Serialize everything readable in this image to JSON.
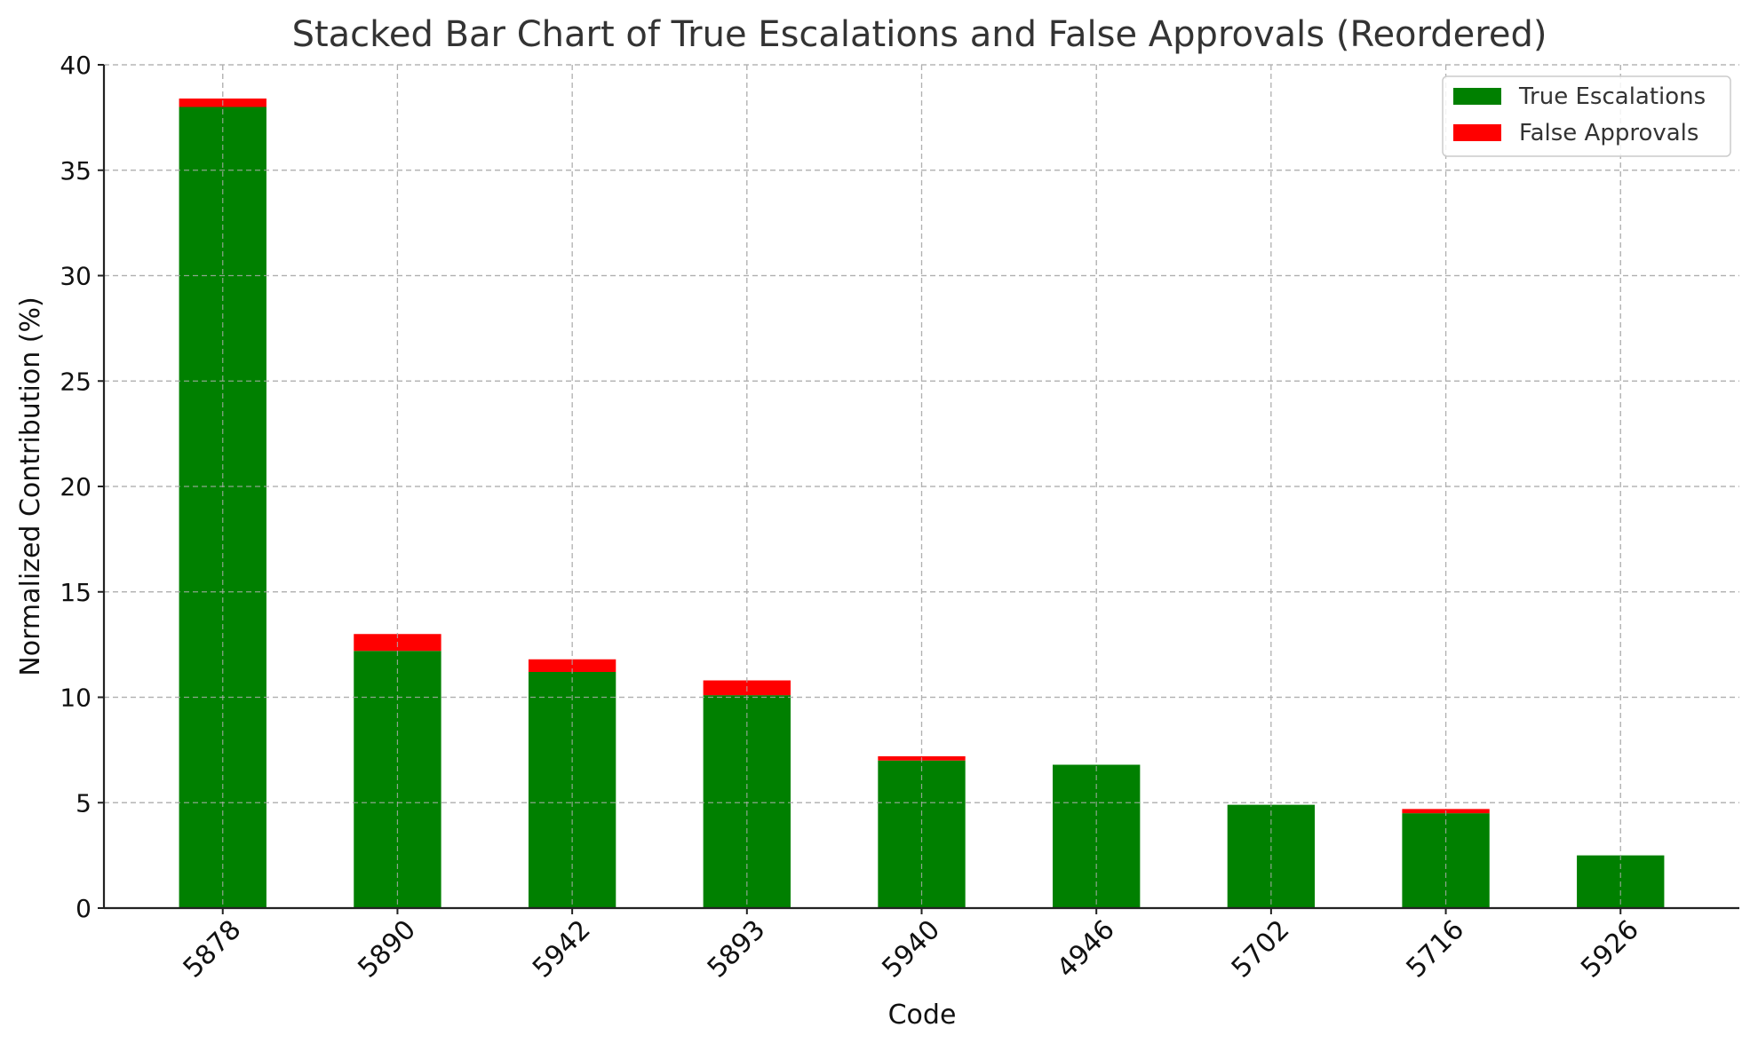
{
  "chart_data": {
    "type": "bar",
    "stacked": true,
    "title": "Stacked Bar Chart of True Escalations and False Approvals (Reordered)",
    "xlabel": "Code",
    "ylabel": "Normalized Contribution (%)",
    "categories": [
      "5878",
      "5890",
      "5942",
      "5893",
      "5940",
      "4946",
      "5702",
      "5716",
      "5926"
    ],
    "series": [
      {
        "name": "True Escalations",
        "color": "#008000",
        "values": [
          38.0,
          12.2,
          11.2,
          10.1,
          7.0,
          6.8,
          4.9,
          4.5,
          2.5
        ]
      },
      {
        "name": "False Approvals",
        "color": "#ff0000",
        "values": [
          0.4,
          0.8,
          0.6,
          0.7,
          0.2,
          0.0,
          0.0,
          0.2,
          0.0
        ]
      }
    ],
    "ylim": [
      0,
      40
    ],
    "yticks": [
      0,
      5,
      10,
      15,
      20,
      25,
      30,
      35,
      40
    ],
    "grid": true,
    "legend_position": "top-right"
  }
}
